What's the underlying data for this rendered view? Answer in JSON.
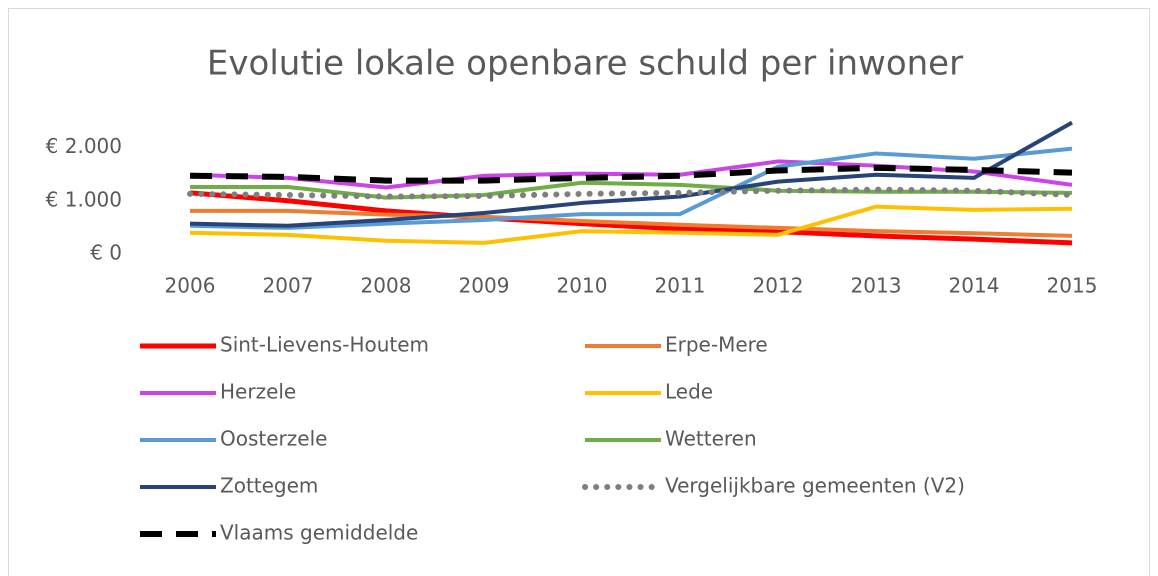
{
  "chart_data": {
    "type": "line",
    "title": "Evolutie lokale openbare schuld per inwoner",
    "x": [
      "2006",
      "2007",
      "2008",
      "2009",
      "2010",
      "2011",
      "2012",
      "2013",
      "2014",
      "2015"
    ],
    "ylim": [
      0,
      2500
    ],
    "yticks": [
      {
        "value": 0,
        "label": "€ 0"
      },
      {
        "value": 1000,
        "label": "€ 1.000"
      },
      {
        "value": 2000,
        "label": "€ 2.000"
      }
    ],
    "series": [
      {
        "name": "Sint-Lievens-Houtem",
        "color": "#ff0000",
        "style": "solid",
        "values": [
          1150,
          1000,
          810,
          680,
          570,
          470,
          420,
          340,
          280,
          210
        ]
      },
      {
        "name": "Erpe-Mere",
        "color": "#ed7d31",
        "style": "solid",
        "values": [
          810,
          810,
          740,
          700,
          620,
          550,
          490,
          430,
          390,
          340
        ]
      },
      {
        "name": "Herzele",
        "color": "#cc44e8",
        "style": "solid",
        "values": [
          1490,
          1430,
          1250,
          1470,
          1510,
          1490,
          1740,
          1660,
          1550,
          1300
        ]
      },
      {
        "name": "Lede",
        "color": "#ffc000",
        "style": "solid",
        "values": [
          400,
          360,
          250,
          210,
          430,
          400,
          360,
          890,
          830,
          850
        ]
      },
      {
        "name": "Oosterzele",
        "color": "#5b9bd5",
        "style": "solid",
        "values": [
          530,
          490,
          570,
          640,
          750,
          750,
          1640,
          1890,
          1790,
          1980
        ]
      },
      {
        "name": "Wetteren",
        "color": "#70ad47",
        "style": "solid",
        "values": [
          1260,
          1260,
          1060,
          1110,
          1340,
          1300,
          1190,
          1170,
          1170,
          1150
        ]
      },
      {
        "name": "Zottegem",
        "color": "#264478",
        "style": "solid",
        "values": [
          570,
          530,
          640,
          770,
          960,
          1080,
          1360,
          1490,
          1430,
          2470
        ]
      },
      {
        "name": "Vergelijkbare gemeenten (V2)",
        "color": "#7f7f7f",
        "style": "dotted",
        "values": [
          1130,
          1110,
          1080,
          1090,
          1130,
          1150,
          1190,
          1210,
          1190,
          1110
        ]
      },
      {
        "name": "Vlaams gemiddelde",
        "color": "#000000",
        "style": "dashed",
        "values": [
          1470,
          1450,
          1380,
          1380,
          1430,
          1470,
          1570,
          1620,
          1580,
          1530
        ]
      }
    ]
  }
}
